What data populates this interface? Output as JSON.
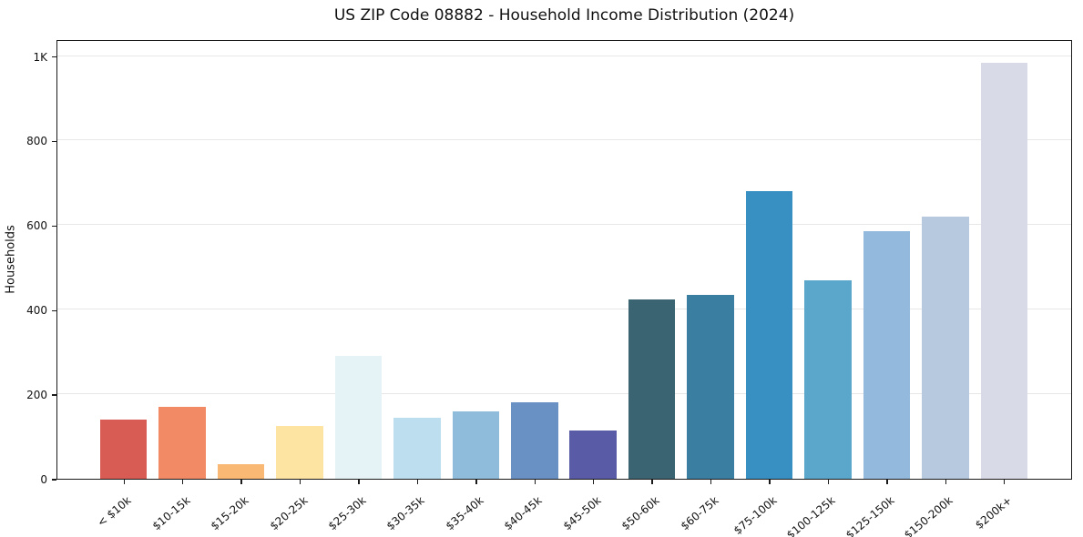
{
  "chart_data": {
    "type": "bar",
    "title": "US ZIP Code 08882 - Household Income Distribution (2024)",
    "xlabel": "",
    "ylabel": "Households",
    "categories": [
      "< $10k",
      "$10-15k",
      "$15-20k",
      "$20-25k",
      "$25-30k",
      "$30-35k",
      "$35-40k",
      "$40-45k",
      "$45-50k",
      "$50-60k",
      "$60-75k",
      "$75-100k",
      "$100-125k",
      "$125-150k",
      "$150-200k",
      "$200k+"
    ],
    "values": [
      140,
      170,
      35,
      125,
      290,
      145,
      160,
      180,
      115,
      425,
      435,
      680,
      470,
      585,
      620,
      985
    ],
    "bar_colors": [
      "#d85c54",
      "#f28a65",
      "#f9b873",
      "#fde4a2",
      "#e6f3f6",
      "#bcdeee",
      "#90bcdc",
      "#6991c4",
      "#5a5ba7",
      "#3a6472",
      "#3a7ea1",
      "#3890c2",
      "#5ba7cb",
      "#93badc",
      "#b6c9de",
      "#d8dbe7"
    ],
    "yticks": [
      {
        "value": 0,
        "label": "0"
      },
      {
        "value": 200,
        "label": "200"
      },
      {
        "value": 400,
        "label": "400"
      },
      {
        "value": 600,
        "label": "600"
      },
      {
        "value": 800,
        "label": "800"
      },
      {
        "value": 1000,
        "label": "1K"
      }
    ],
    "ylim": [
      0,
      1040
    ],
    "grid": "horizontal",
    "legend": "none",
    "background_color": "#ffffff",
    "axis_color": "#1a1a1a",
    "gridline_color": "#e7e7e7"
  }
}
